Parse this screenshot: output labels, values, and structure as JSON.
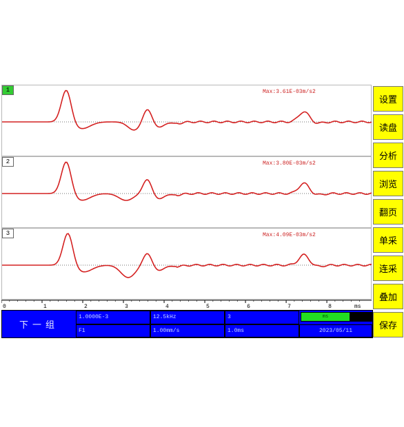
{
  "panels": [
    {
      "id": "1",
      "max_label": "Max:3.61E-03m/s2",
      "active": true
    },
    {
      "id": "2",
      "max_label": "Max:3.80E-03m/s2",
      "active": false
    },
    {
      "id": "3",
      "max_label": "Max:4.09E-03m/s2",
      "active": false
    }
  ],
  "axis": {
    "ticks": [
      "0",
      "1",
      "2",
      "3",
      "4",
      "5",
      "6",
      "7",
      "8"
    ],
    "unit": "ms",
    "range": [
      0,
      9.1
    ]
  },
  "sidebar": {
    "items": [
      {
        "label": "设置"
      },
      {
        "label": "读盘"
      },
      {
        "label": "分析"
      },
      {
        "label": "浏览"
      },
      {
        "label": "翻页"
      },
      {
        "label": "单采"
      },
      {
        "label": "连采"
      },
      {
        "label": "叠加"
      },
      {
        "label": "保存"
      }
    ]
  },
  "infobar": {
    "next_label": "下一组",
    "cells": {
      "r1c1": "1.0000E-3",
      "r1c2": "12.5kHz",
      "r1c3": "3",
      "r2c1": "F1",
      "r2c2": "1.00mm/s",
      "r2c3": "1.0ms",
      "r2c4": "2023/05/11"
    },
    "progress_text": "ms"
  },
  "colors": {
    "trace": "#d42020",
    "baseline": "#444444",
    "sidebar_bg": "#ffff00",
    "infobar_bg": "#0000ff",
    "active_id": "#33cc33"
  }
}
